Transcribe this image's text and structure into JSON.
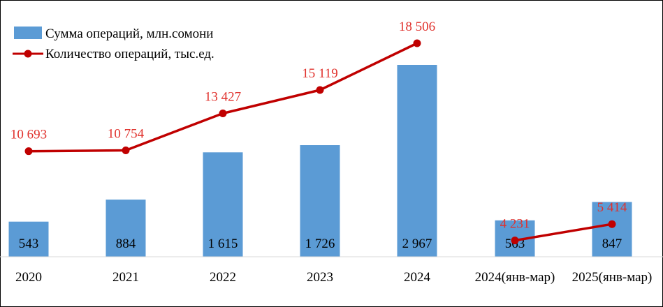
{
  "chart_data": {
    "type": "bar",
    "categories": [
      "2020",
      "2021",
      "2022",
      "2023",
      "2024",
      "2024(янв-мар)",
      "2025(янв-мар)"
    ],
    "series": [
      {
        "name": "Сумма операций, млн.сомони",
        "kind": "bar",
        "color": "#5B9BD5",
        "values": [
          543,
          884,
          1615,
          1726,
          2967,
          563,
          847
        ],
        "labels": [
          "543",
          "884",
          "1 615",
          "1 726",
          "2 967",
          "563",
          "847"
        ]
      },
      {
        "name": "Количество операций, тыс.ед.",
        "kind": "line",
        "color": "#C00000",
        "segments": [
          [
            0,
            4
          ],
          [
            5,
            6
          ]
        ],
        "values": [
          10693,
          10754,
          13427,
          15119,
          18506,
          4231,
          5414
        ],
        "labels": [
          "10 693",
          "10 754",
          "13 427",
          "15 119",
          "18 506",
          "4 231",
          "5 414"
        ]
      }
    ],
    "legend_position": "top-left",
    "grid": false
  }
}
